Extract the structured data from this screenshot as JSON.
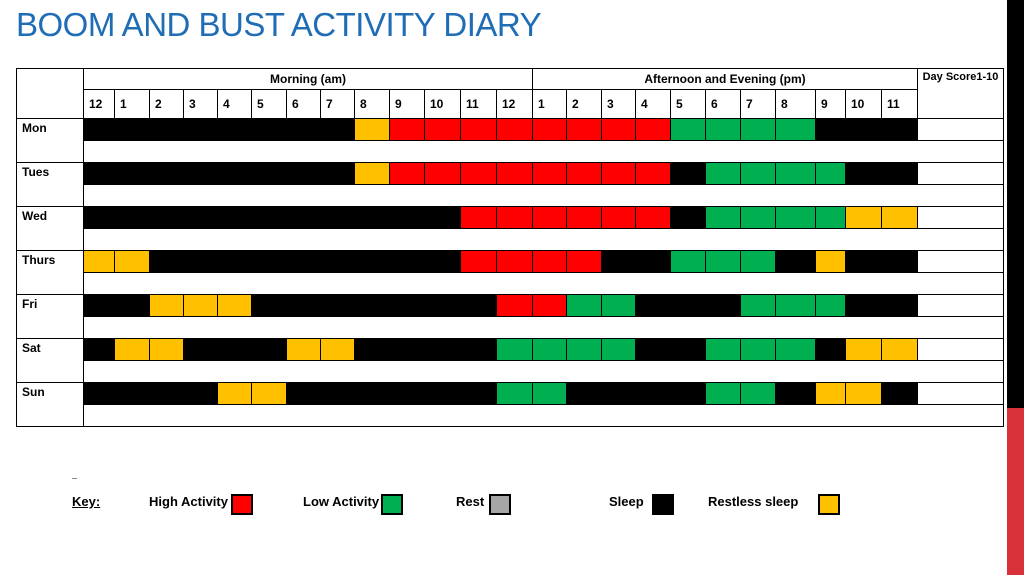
{
  "title": "BOOM AND BUST ACTIVITY DIARY",
  "headers": {
    "morning": "Morning (am)",
    "afternoon": "Afternoon and Evening (pm)",
    "score": "Day Score1-10",
    "hours": [
      "12",
      "1",
      "2",
      "3",
      "4",
      "5",
      "6",
      "7",
      "8",
      "9",
      "10",
      "11",
      "12",
      "1",
      "2",
      "3",
      "4",
      "5",
      "6",
      "7",
      "8",
      "9",
      "10",
      "11"
    ]
  },
  "days": [
    {
      "name": "Mon",
      "cells": [
        "sleep",
        "sleep",
        "sleep",
        "sleep",
        "sleep",
        "sleep",
        "sleep",
        "sleep",
        "restless",
        "high",
        "high",
        "high",
        "high",
        "high",
        "high",
        "high",
        "high",
        "low",
        "low",
        "low",
        "low",
        "sleep",
        "sleep",
        "sleep"
      ]
    },
    {
      "name": "Tues",
      "cells": [
        "sleep",
        "sleep",
        "sleep",
        "sleep",
        "sleep",
        "sleep",
        "sleep",
        "sleep",
        "restless",
        "high",
        "high",
        "high",
        "high",
        "high",
        "high",
        "high",
        "high",
        "sleep",
        "low",
        "low",
        "low",
        "low",
        "sleep",
        "sleep"
      ]
    },
    {
      "name": "Wed",
      "cells": [
        "sleep",
        "sleep",
        "sleep",
        "sleep",
        "sleep",
        "sleep",
        "sleep",
        "sleep",
        "sleep",
        "sleep",
        "sleep",
        "high",
        "high",
        "high",
        "high",
        "high",
        "high",
        "sleep",
        "low",
        "low",
        "low",
        "low",
        "restless",
        "restless"
      ]
    },
    {
      "name": "Thurs",
      "cells": [
        "restless",
        "restless",
        "sleep",
        "sleep",
        "sleep",
        "sleep",
        "sleep",
        "sleep",
        "sleep",
        "sleep",
        "sleep",
        "high",
        "high",
        "high",
        "high",
        "sleep",
        "sleep",
        "low",
        "low",
        "low",
        "sleep",
        "restless",
        "sleep",
        "sleep"
      ]
    },
    {
      "name": "Fri",
      "cells": [
        "sleep",
        "sleep",
        "restless",
        "restless",
        "restless",
        "sleep",
        "sleep",
        "sleep",
        "sleep",
        "sleep",
        "sleep",
        "sleep",
        "high",
        "high",
        "low",
        "low",
        "sleep",
        "sleep",
        "sleep",
        "low",
        "low",
        "low",
        "sleep",
        "sleep"
      ]
    },
    {
      "name": "Sat",
      "cells": [
        "sleep",
        "restless",
        "restless",
        "sleep",
        "sleep",
        "sleep",
        "restless",
        "restless",
        "sleep",
        "sleep",
        "sleep",
        "sleep",
        "low",
        "low",
        "low",
        "low",
        "sleep",
        "sleep",
        "low",
        "low",
        "low",
        "sleep",
        "restless",
        "restless"
      ]
    },
    {
      "name": "Sun",
      "cells": [
        "sleep",
        "sleep",
        "sleep",
        "sleep",
        "restless",
        "restless",
        "sleep",
        "sleep",
        "sleep",
        "sleep",
        "sleep",
        "sleep",
        "low",
        "low",
        "sleep",
        "sleep",
        "sleep",
        "sleep",
        "low",
        "low",
        "sleep",
        "restless",
        "restless",
        "sleep"
      ]
    }
  ],
  "key": {
    "title": "Key:",
    "items": [
      {
        "id": "high",
        "label": "High Activity",
        "color": "#ff0000"
      },
      {
        "id": "low",
        "label": "Low Activity",
        "color": "#00b050"
      },
      {
        "id": "rest",
        "label": "Rest",
        "color": "#a6a6a6"
      },
      {
        "id": "sleep",
        "label": "Sleep",
        "color": "#000000"
      },
      {
        "id": "restless",
        "label": "Restless sleep",
        "color": "#ffc000"
      }
    ]
  },
  "colors": {
    "title": "#1f6db5",
    "high": "#ff0000",
    "low": "#00b050",
    "rest": "#a6a6a6",
    "sleep": "#000000",
    "restless": "#ffc000"
  }
}
